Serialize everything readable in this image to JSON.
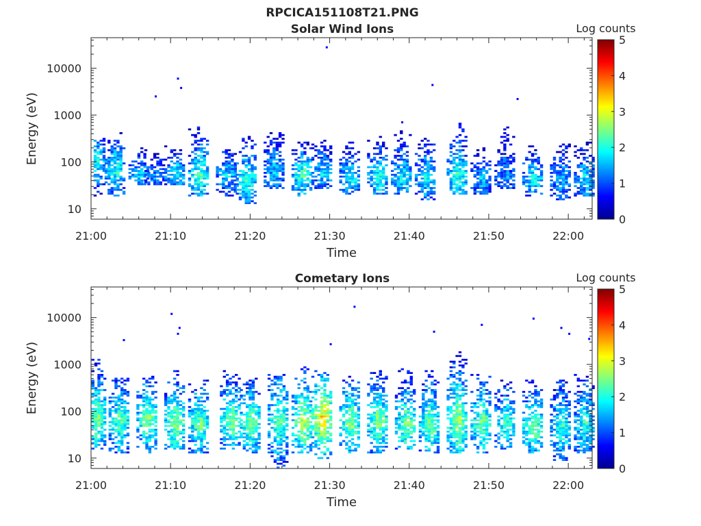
{
  "title": "RPCICA151108T21.PNG",
  "chart_data": [
    {
      "type": "heatmap",
      "title": "Solar Wind Ions",
      "xlabel": "Time",
      "ylabel": "Energy (eV)",
      "yscale": "log",
      "ylim": [
        6,
        45000
      ],
      "xlim": [
        "21:00",
        "22:03"
      ],
      "xticks": [
        "21:00",
        "21:10",
        "21:20",
        "21:30",
        "21:40",
        "21:50",
        "22:00"
      ],
      "yticks": [
        "10",
        "100",
        "1000",
        "10000"
      ],
      "colorbar": {
        "label": "Log counts",
        "ticks": [
          "0",
          "1",
          "2",
          "3",
          "4",
          "5"
        ],
        "range": [
          0,
          5
        ],
        "colormap": "jet"
      },
      "grid": false,
      "bursts": [
        {
          "t": 0.5,
          "lo": 18,
          "hi": 300,
          "peak": 100,
          "amp": 2.0
        },
        {
          "t": 3.0,
          "lo": 18,
          "hi": 400,
          "peak": 60,
          "amp": 2.1
        },
        {
          "t": 6.0,
          "lo": 30,
          "hi": 200,
          "peak": 50,
          "amp": 1.8
        },
        {
          "t": 8.0,
          "lo": 30,
          "hi": 200,
          "peak": 45,
          "amp": 1.5
        },
        {
          "t": 10.5,
          "lo": 30,
          "hi": 220,
          "peak": 55,
          "amp": 2.0
        },
        {
          "t": 13.5,
          "lo": 18,
          "hi": 550,
          "peak": 50,
          "amp": 2.3
        },
        {
          "t": 17.0,
          "lo": 18,
          "hi": 180,
          "peak": 50,
          "amp": 1.8
        },
        {
          "t": 19.5,
          "lo": 12,
          "hi": 350,
          "peak": 40,
          "amp": 2.2
        },
        {
          "t": 23.0,
          "lo": 25,
          "hi": 450,
          "peak": 60,
          "amp": 1.7
        },
        {
          "t": 26.5,
          "lo": 18,
          "hi": 250,
          "peak": 50,
          "amp": 2.4
        },
        {
          "t": 29.0,
          "lo": 25,
          "hi": 300,
          "peak": 55,
          "amp": 1.8
        },
        {
          "t": 32.5,
          "lo": 20,
          "hi": 250,
          "peak": 45,
          "amp": 2.0
        },
        {
          "t": 36.0,
          "lo": 20,
          "hi": 400,
          "peak": 45,
          "amp": 2.1
        },
        {
          "t": 39.0,
          "lo": 20,
          "hi": 500,
          "peak": 45,
          "amp": 1.9
        },
        {
          "t": 42.0,
          "lo": 14,
          "hi": 300,
          "peak": 45,
          "amp": 2.0
        },
        {
          "t": 46.0,
          "lo": 20,
          "hi": 650,
          "peak": 50,
          "amp": 2.2
        },
        {
          "t": 49.0,
          "lo": 20,
          "hi": 200,
          "peak": 40,
          "amp": 1.7
        },
        {
          "t": 52.0,
          "lo": 25,
          "hi": 550,
          "peak": 45,
          "amp": 1.4
        },
        {
          "t": 55.5,
          "lo": 18,
          "hi": 220,
          "peak": 40,
          "amp": 2.0
        },
        {
          "t": 59.0,
          "lo": 14,
          "hi": 250,
          "peak": 40,
          "amp": 1.6
        },
        {
          "t": 62.0,
          "lo": 18,
          "hi": 350,
          "peak": 40,
          "amp": 1.8
        }
      ],
      "spots": [
        {
          "t": 8.0,
          "e": 2500
        },
        {
          "t": 10.8,
          "e": 6000
        },
        {
          "t": 11.2,
          "e": 3800
        },
        {
          "t": 29.5,
          "e": 28000
        },
        {
          "t": 42.8,
          "e": 4400
        },
        {
          "t": 53.5,
          "e": 2200
        },
        {
          "t": 39.0,
          "e": 700
        }
      ]
    },
    {
      "type": "heatmap",
      "title": "Cometary Ions",
      "xlabel": "Time",
      "ylabel": "Energy (eV)",
      "yscale": "log",
      "ylim": [
        6,
        45000
      ],
      "xlim": [
        "21:00",
        "22:03"
      ],
      "xticks": [
        "21:00",
        "21:10",
        "21:20",
        "21:30",
        "21:40",
        "21:50",
        "22:00"
      ],
      "yticks": [
        "10",
        "100",
        "1000",
        "10000"
      ],
      "colorbar": {
        "label": "Log counts",
        "ticks": [
          "0",
          "1",
          "2",
          "3",
          "4",
          "5"
        ],
        "range": [
          0,
          5
        ],
        "colormap": "jet"
      },
      "grid": false,
      "bursts": [
        {
          "t": 0.6,
          "lo": 14,
          "hi": 1200,
          "peak": 70,
          "amp": 2.6
        },
        {
          "t": 3.5,
          "lo": 12,
          "hi": 500,
          "peak": 60,
          "amp": 2.5
        },
        {
          "t": 7.0,
          "lo": 12,
          "hi": 600,
          "peak": 65,
          "amp": 2.6
        },
        {
          "t": 10.5,
          "lo": 14,
          "hi": 700,
          "peak": 55,
          "amp": 2.7
        },
        {
          "t": 13.5,
          "lo": 12,
          "hi": 500,
          "peak": 55,
          "amp": 2.5
        },
        {
          "t": 17.5,
          "lo": 14,
          "hi": 700,
          "peak": 60,
          "amp": 2.6
        },
        {
          "t": 20.0,
          "lo": 12,
          "hi": 500,
          "peak": 55,
          "amp": 2.7
        },
        {
          "t": 23.5,
          "lo": 6,
          "hi": 600,
          "peak": 60,
          "amp": 2.5
        },
        {
          "t": 26.5,
          "lo": 12,
          "hi": 900,
          "peak": 55,
          "amp": 2.9
        },
        {
          "t": 29.0,
          "lo": 8,
          "hi": 700,
          "peak": 70,
          "amp": 3.4
        },
        {
          "t": 32.5,
          "lo": 12,
          "hi": 600,
          "peak": 55,
          "amp": 2.7
        },
        {
          "t": 36.0,
          "lo": 12,
          "hi": 700,
          "peak": 55,
          "amp": 2.7
        },
        {
          "t": 39.5,
          "lo": 14,
          "hi": 800,
          "peak": 50,
          "amp": 2.6
        },
        {
          "t": 42.5,
          "lo": 12,
          "hi": 700,
          "peak": 50,
          "amp": 2.6
        },
        {
          "t": 46.0,
          "lo": 12,
          "hi": 2000,
          "peak": 60,
          "amp": 2.8
        },
        {
          "t": 49.0,
          "lo": 12,
          "hi": 600,
          "peak": 55,
          "amp": 2.6
        },
        {
          "t": 52.0,
          "lo": 14,
          "hi": 450,
          "peak": 50,
          "amp": 2.3
        },
        {
          "t": 55.5,
          "lo": 12,
          "hi": 450,
          "peak": 45,
          "amp": 2.6
        },
        {
          "t": 59.0,
          "lo": 8,
          "hi": 450,
          "peak": 45,
          "amp": 2.2
        },
        {
          "t": 62.0,
          "lo": 12,
          "hi": 600,
          "peak": 50,
          "amp": 2.2
        }
      ],
      "spots": [
        {
          "t": 10.0,
          "e": 12000
        },
        {
          "t": 11.0,
          "e": 6000
        },
        {
          "t": 10.8,
          "e": 4500
        },
        {
          "t": 33.0,
          "e": 17000
        },
        {
          "t": 4.0,
          "e": 3300
        },
        {
          "t": 43.0,
          "e": 5000
        },
        {
          "t": 49.0,
          "e": 7000
        },
        {
          "t": 55.5,
          "e": 9500
        },
        {
          "t": 59.0,
          "e": 6000
        },
        {
          "t": 60.0,
          "e": 4500
        },
        {
          "t": 62.5,
          "e": 3500
        },
        {
          "t": 30.0,
          "e": 2700
        }
      ]
    }
  ]
}
